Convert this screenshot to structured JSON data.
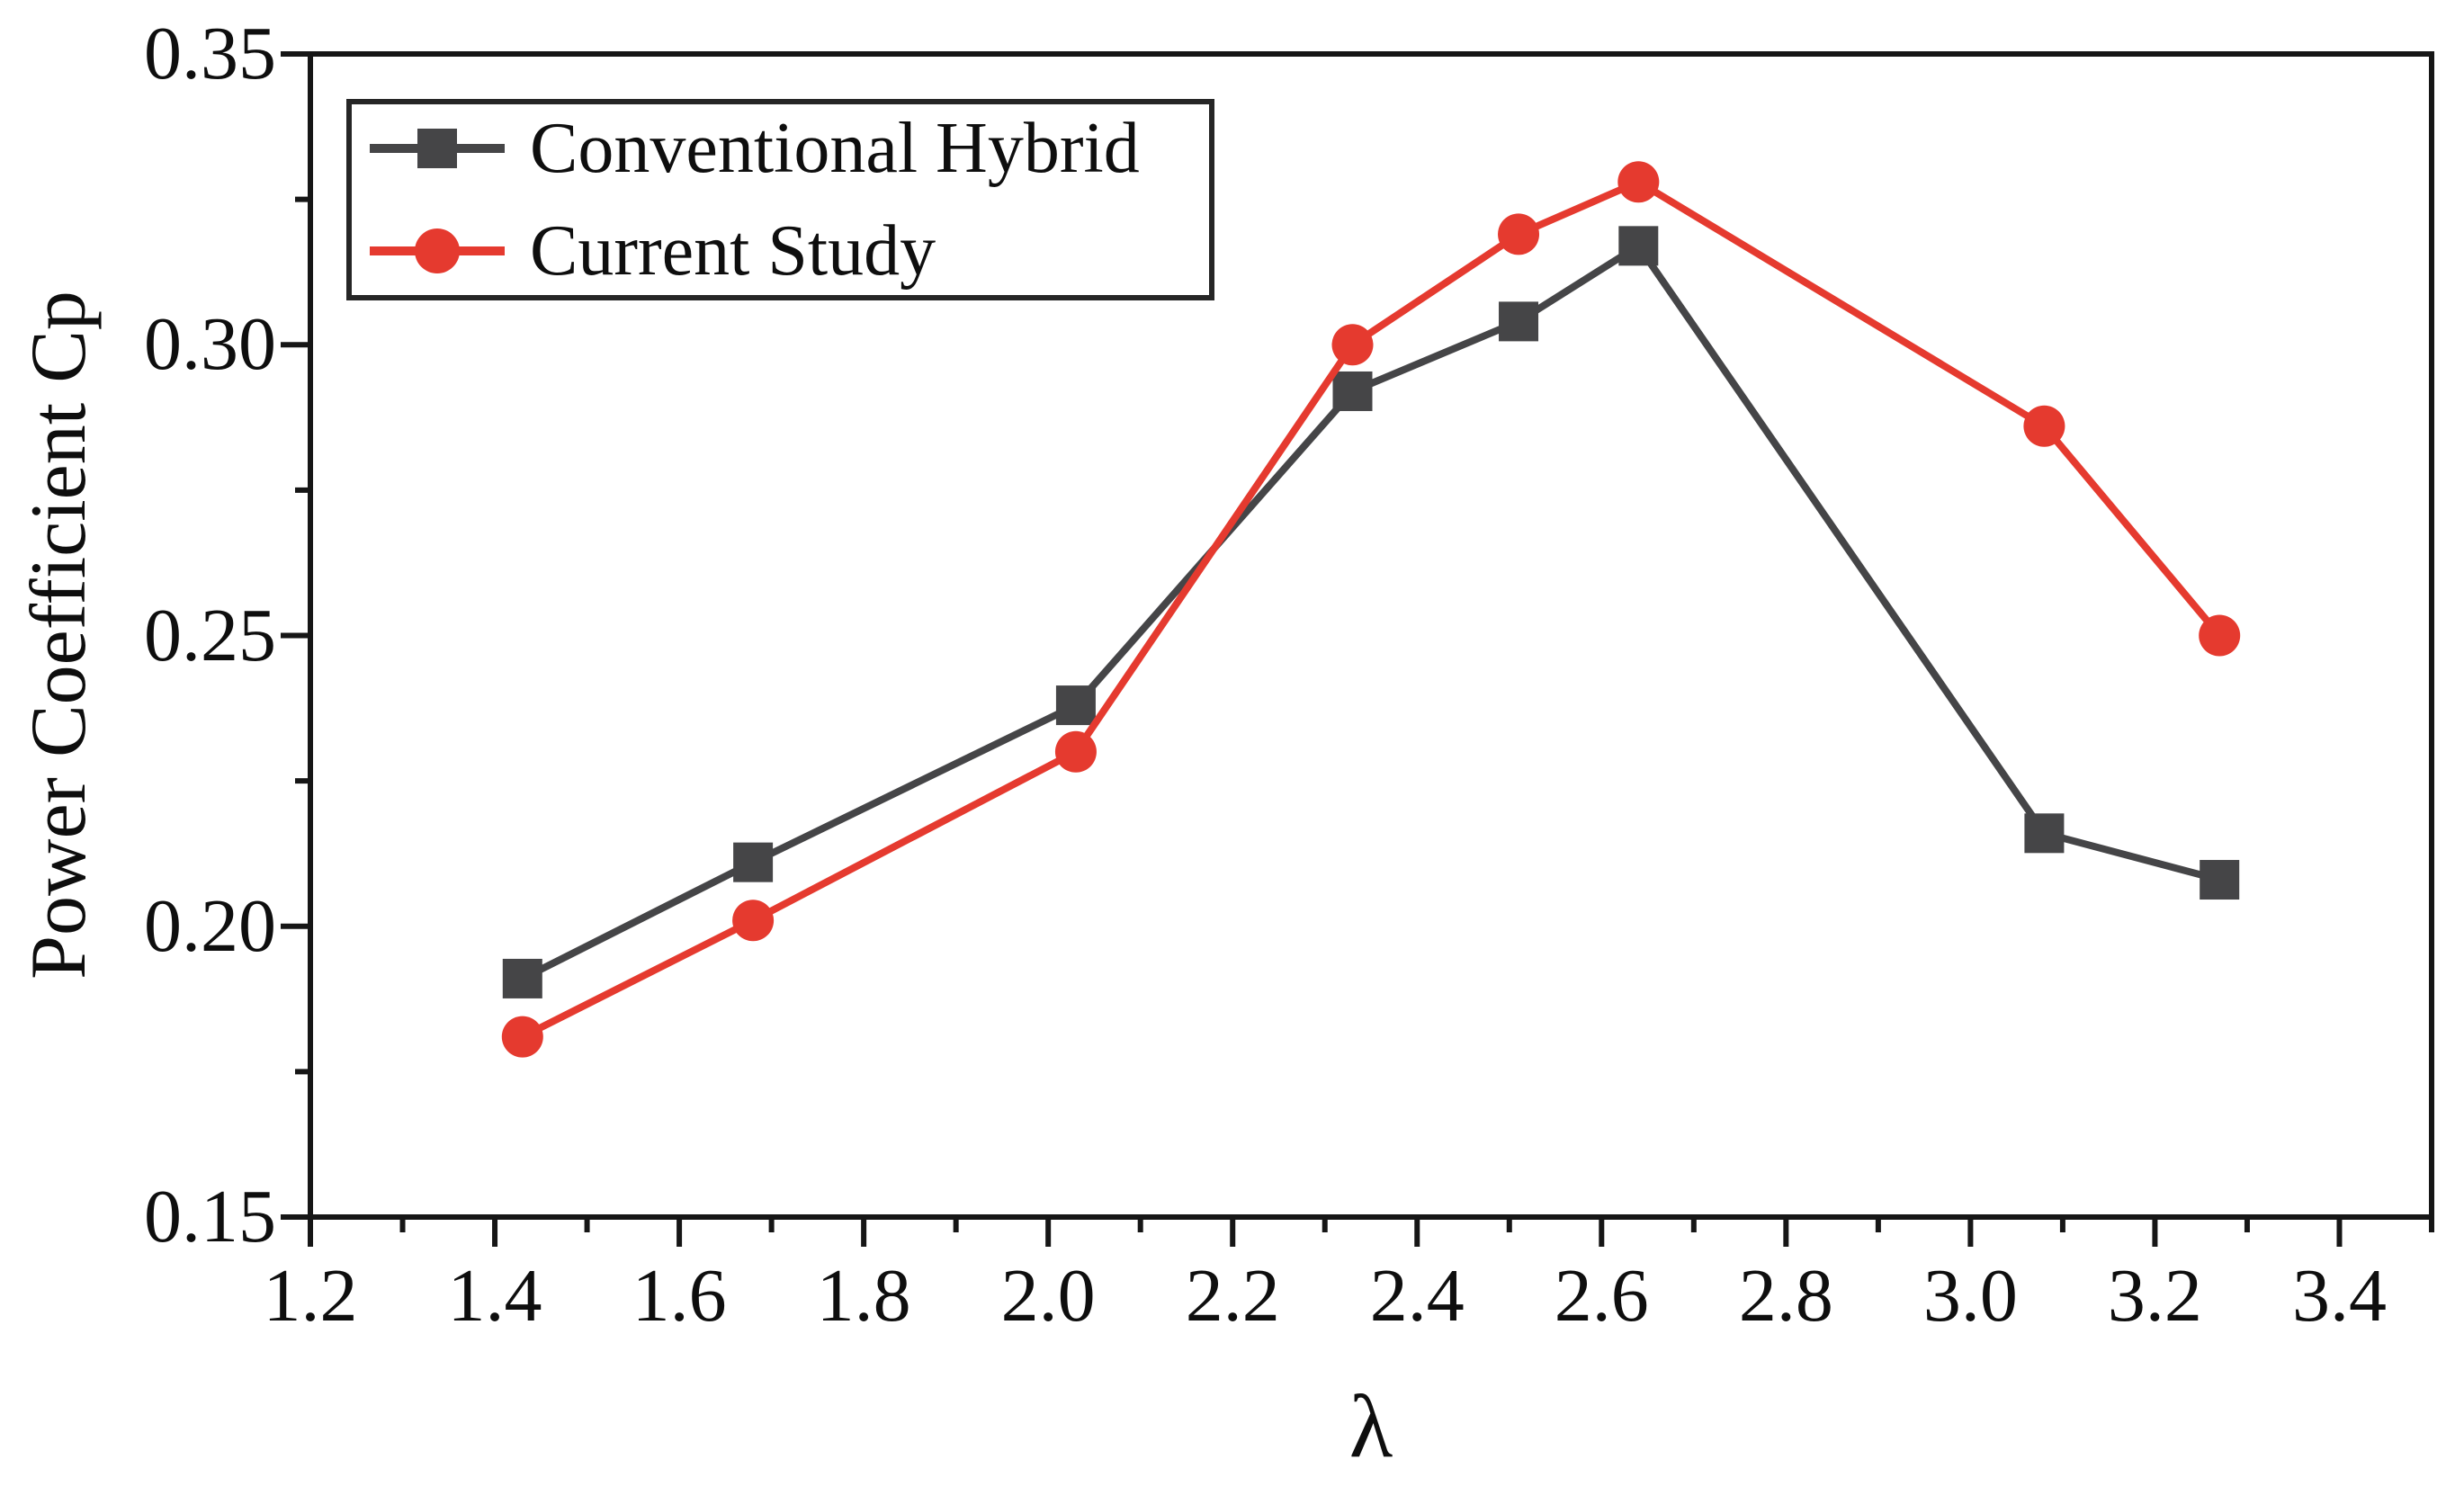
{
  "figure": {
    "background": "#ffffff",
    "axis_color": "#161616",
    "text_color": "#0e0e0e"
  },
  "x_axis": {
    "title": "λ",
    "min": 1.2,
    "max": 3.5,
    "major_ticks": [
      1.2,
      1.4,
      1.6,
      1.8,
      2.0,
      2.2,
      2.4,
      2.6,
      2.8,
      3.0,
      3.2,
      3.4
    ],
    "tick_labels": [
      "1.2",
      "1.4",
      "1.6",
      "1.8",
      "2.0",
      "2.2",
      "2.4",
      "2.6",
      "2.8",
      "3.0",
      "3.2",
      "3.4"
    ],
    "minor_ticks": [
      1.3,
      1.5,
      1.7,
      1.9,
      2.1,
      2.3,
      2.5,
      2.7,
      2.9,
      3.1,
      3.3,
      3.5
    ]
  },
  "y_axis": {
    "title": "Power Coefficient Cp",
    "min": 0.15,
    "max": 0.35,
    "major_ticks": [
      0.15,
      0.2,
      0.25,
      0.3,
      0.35
    ],
    "tick_labels": [
      "0.15",
      "0.20",
      "0.25",
      "0.30",
      "0.35"
    ],
    "minor_ticks": [
      0.175,
      0.225,
      0.275,
      0.325
    ]
  },
  "legend": {
    "position": "top-left",
    "entries": [
      {
        "label": "Conventional Hybrid",
        "marker": "square",
        "color": "#454547"
      },
      {
        "label": "Current Study",
        "marker": "circle",
        "color": "#e53a2f"
      }
    ]
  },
  "chart_data": {
    "type": "line",
    "title": "",
    "xlabel": "λ",
    "ylabel": "Power Coefficient Cp",
    "xlim": [
      1.2,
      3.5
    ],
    "ylim": [
      0.15,
      0.35
    ],
    "grid": false,
    "legend_position": "top-left",
    "series": [
      {
        "name": "Conventional Hybrid",
        "marker": "square",
        "color": "#454547",
        "points": [
          [
            1.43,
            0.191
          ],
          [
            1.68,
            0.211
          ],
          [
            2.03,
            0.238
          ],
          [
            2.33,
            0.292
          ],
          [
            2.51,
            0.304
          ],
          [
            2.64,
            0.317
          ],
          [
            3.08,
            0.216
          ],
          [
            3.27,
            0.208
          ]
        ]
      },
      {
        "name": "Current Study",
        "marker": "circle",
        "color": "#e53a2f",
        "points": [
          [
            1.43,
            0.181
          ],
          [
            1.68,
            0.201
          ],
          [
            2.03,
            0.23
          ],
          [
            2.33,
            0.3
          ],
          [
            2.51,
            0.319
          ],
          [
            2.64,
            0.328
          ],
          [
            3.08,
            0.286
          ],
          [
            3.27,
            0.25
          ]
        ]
      }
    ]
  }
}
